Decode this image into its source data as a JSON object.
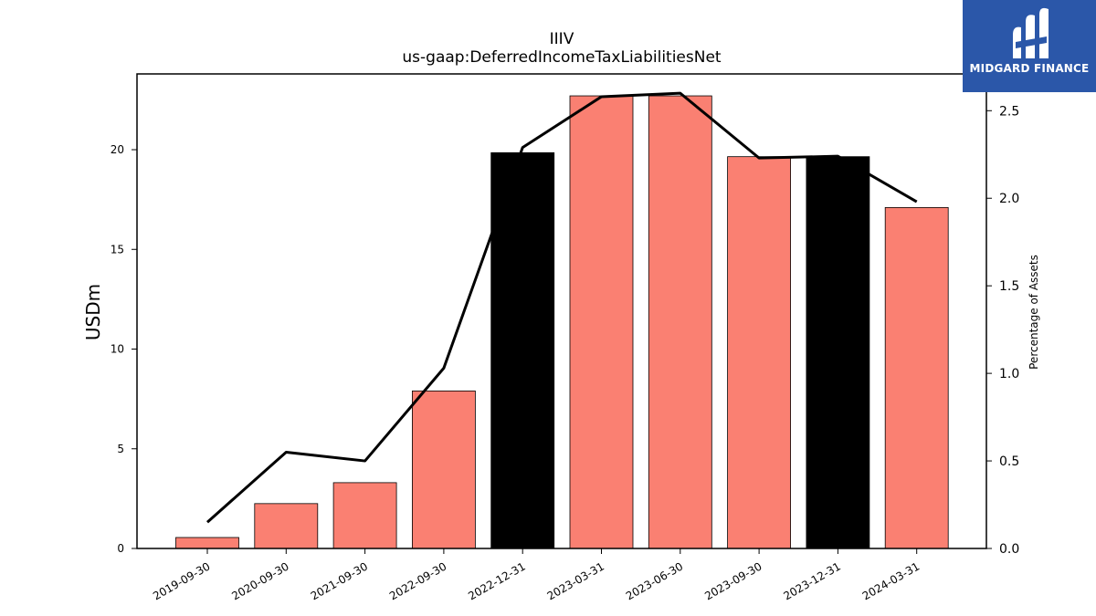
{
  "chart_data": {
    "type": "bar",
    "title": "IIIV",
    "subtitle": "us-gaap:DeferredIncomeTaxLiabilitiesNet",
    "ylabel": "USDm",
    "y2label": "Percentage of Assets",
    "categories": [
      "2019-09-30",
      "2020-09-30",
      "2021-09-30",
      "2022-09-30",
      "2022-12-31",
      "2023-03-31",
      "2023-06-30",
      "2023-09-30",
      "2023-12-31",
      "2024-03-31"
    ],
    "values": [
      0.55,
      2.25,
      3.3,
      7.9,
      19.85,
      22.7,
      22.7,
      19.65,
      19.65,
      17.1
    ],
    "bar_colors": [
      "#fa8072",
      "#fa8072",
      "#fa8072",
      "#fa8072",
      "#000000",
      "#fa8072",
      "#fa8072",
      "#fa8072",
      "#000000",
      "#fa8072"
    ],
    "line_series": {
      "values": [
        0.15,
        0.55,
        0.5,
        1.03,
        2.29,
        2.58,
        2.6,
        2.23,
        2.24,
        1.98
      ],
      "color": "#000000"
    },
    "ylim": [
      0,
      23.8
    ],
    "y2lim": [
      0,
      2.71
    ],
    "yticks": [
      0,
      5,
      10,
      15,
      20
    ],
    "y2ticks": [
      "0.0",
      "0.5",
      "1.0",
      "1.5",
      "2.0",
      "2.5"
    ],
    "grid": false
  },
  "logo": {
    "text": "MIDGARD FINANCE",
    "bg": "#2b57a9"
  }
}
